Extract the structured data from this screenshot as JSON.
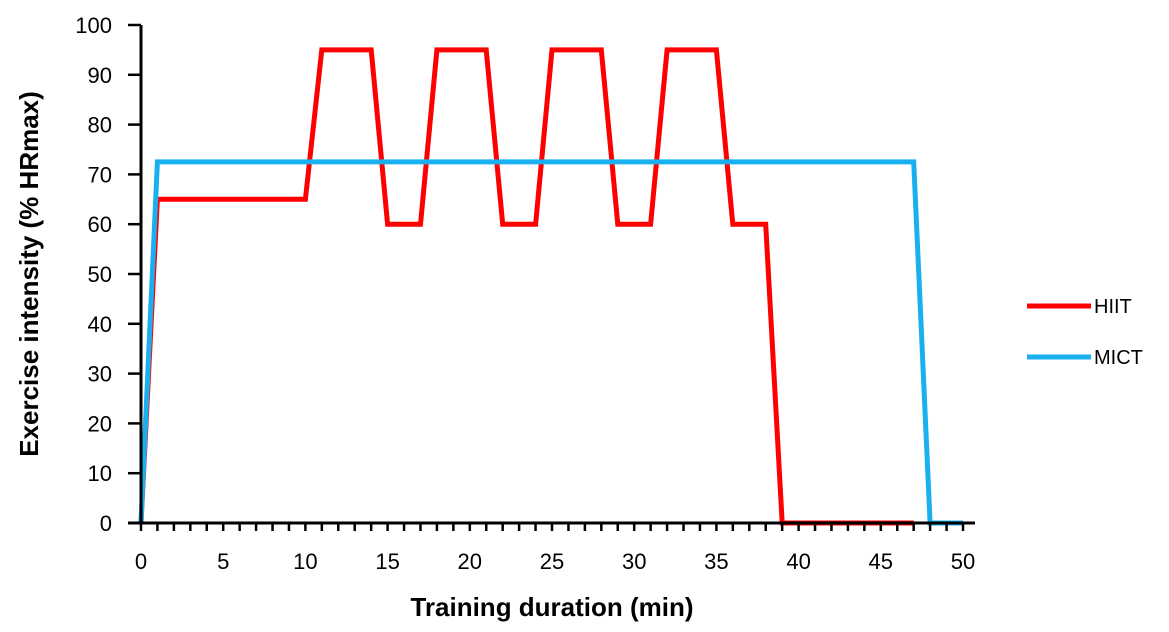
{
  "chart_data": {
    "type": "line",
    "xlabel": "Training duration (min)",
    "ylabel": "Exercise intensity (% HRmax)",
    "xlim": [
      0,
      50
    ],
    "ylim": [
      0,
      100
    ],
    "xticks": [
      0,
      5,
      10,
      15,
      20,
      25,
      30,
      35,
      40,
      45,
      50
    ],
    "yticks": [
      0,
      10,
      20,
      30,
      40,
      50,
      60,
      70,
      80,
      90,
      100
    ],
    "grid": false,
    "legend": "right",
    "series": [
      {
        "name": "HIIT",
        "color": "#ff0000",
        "points": [
          [
            0,
            0
          ],
          [
            1,
            65
          ],
          [
            10,
            65
          ],
          [
            11,
            95
          ],
          [
            14,
            95
          ],
          [
            15,
            60
          ],
          [
            17,
            60
          ],
          [
            18,
            95
          ],
          [
            21,
            95
          ],
          [
            22,
            60
          ],
          [
            24,
            60
          ],
          [
            25,
            95
          ],
          [
            28,
            95
          ],
          [
            29,
            60
          ],
          [
            31,
            60
          ],
          [
            32,
            95
          ],
          [
            35,
            95
          ],
          [
            36,
            60
          ],
          [
            38,
            60
          ],
          [
            39,
            0
          ],
          [
            47,
            0
          ]
        ]
      },
      {
        "name": "MICT",
        "color": "#1ab0f0",
        "points": [
          [
            0,
            0
          ],
          [
            1,
            72.5
          ],
          [
            47,
            72.5
          ],
          [
            48,
            0
          ],
          [
            50,
            0
          ]
        ]
      }
    ]
  }
}
